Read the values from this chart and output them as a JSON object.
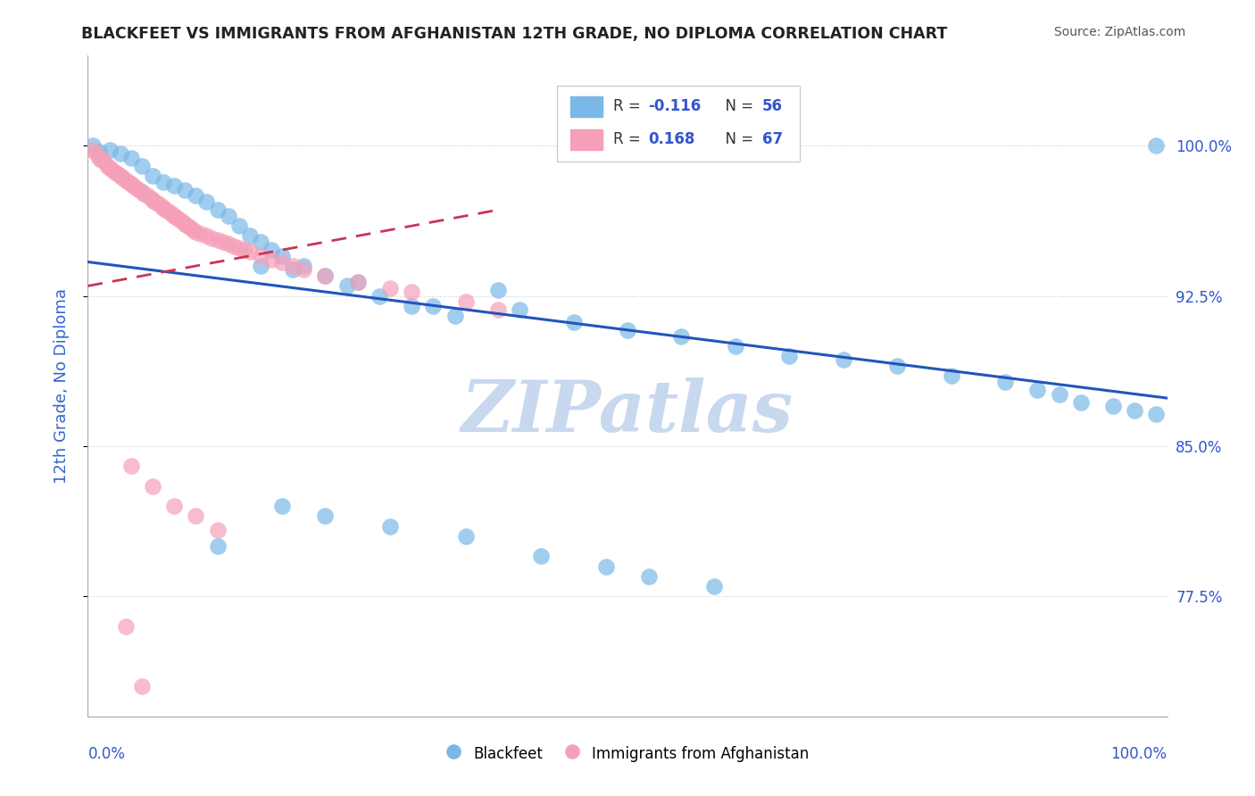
{
  "title": "BLACKFEET VS IMMIGRANTS FROM AFGHANISTAN 12TH GRADE, NO DIPLOMA CORRELATION CHART",
  "source": "Source: ZipAtlas.com",
  "ylabel": "12th Grade, No Diploma",
  "ylabel_color": "#3366cc",
  "ytick_labels": [
    "77.5%",
    "85.0%",
    "92.5%",
    "100.0%"
  ],
  "ytick_values": [
    0.775,
    0.85,
    0.925,
    1.0
  ],
  "xlim": [
    0.0,
    1.0
  ],
  "ylim": [
    0.715,
    1.045
  ],
  "blue_R": "-0.116",
  "blue_N": "56",
  "pink_R": "0.168",
  "pink_N": "67",
  "blue_color": "#7ab8e8",
  "pink_color": "#f4a0b8",
  "trend_blue_color": "#2255bb",
  "trend_pink_color": "#cc3355",
  "stat_color": "#3355cc",
  "watermark_text": "ZIPatlas",
  "watermark_color": "#c8d8ee",
  "legend_blue_label": "Blackfeet",
  "legend_pink_label": "Immigrants from Afghanistan",
  "blue_x": [
    0.005,
    0.01,
    0.02,
    0.03,
    0.04,
    0.05,
    0.06,
    0.07,
    0.08,
    0.09,
    0.1,
    0.11,
    0.12,
    0.13,
    0.14,
    0.15,
    0.16,
    0.17,
    0.18,
    0.2,
    0.22,
    0.24,
    0.27,
    0.3,
    0.34,
    0.38,
    0.16,
    0.19,
    0.25,
    0.32,
    0.4,
    0.45,
    0.5,
    0.55,
    0.6,
    0.65,
    0.7,
    0.75,
    0.8,
    0.85,
    0.88,
    0.9,
    0.92,
    0.95,
    0.97,
    0.99,
    0.18,
    0.22,
    0.12,
    0.28,
    0.35,
    0.42,
    0.48,
    0.52,
    0.58,
    0.99
  ],
  "blue_y": [
    1.0,
    0.997,
    0.998,
    0.996,
    0.994,
    0.99,
    0.985,
    0.982,
    0.98,
    0.978,
    0.975,
    0.972,
    0.968,
    0.965,
    0.96,
    0.955,
    0.952,
    0.948,
    0.945,
    0.94,
    0.935,
    0.93,
    0.925,
    0.92,
    0.915,
    0.928,
    0.94,
    0.938,
    0.932,
    0.92,
    0.918,
    0.912,
    0.908,
    0.905,
    0.9,
    0.895,
    0.893,
    0.89,
    0.885,
    0.882,
    0.878,
    0.876,
    0.872,
    0.87,
    0.868,
    0.866,
    0.82,
    0.815,
    0.8,
    0.81,
    0.805,
    0.795,
    0.79,
    0.785,
    0.78,
    1.0
  ],
  "pink_x": [
    0.005,
    0.008,
    0.01,
    0.012,
    0.015,
    0.018,
    0.02,
    0.022,
    0.025,
    0.028,
    0.03,
    0.032,
    0.035,
    0.038,
    0.04,
    0.042,
    0.045,
    0.048,
    0.05,
    0.052,
    0.055,
    0.058,
    0.06,
    0.062,
    0.065,
    0.068,
    0.07,
    0.072,
    0.075,
    0.078,
    0.08,
    0.082,
    0.085,
    0.088,
    0.09,
    0.092,
    0.095,
    0.098,
    0.1,
    0.105,
    0.11,
    0.115,
    0.12,
    0.125,
    0.13,
    0.135,
    0.14,
    0.145,
    0.15,
    0.16,
    0.17,
    0.18,
    0.19,
    0.2,
    0.22,
    0.25,
    0.28,
    0.3,
    0.35,
    0.38,
    0.04,
    0.06,
    0.08,
    0.1,
    0.12,
    0.035,
    0.05
  ],
  "pink_y": [
    0.998,
    0.996,
    0.994,
    0.993,
    0.992,
    0.99,
    0.989,
    0.988,
    0.987,
    0.986,
    0.985,
    0.984,
    0.983,
    0.982,
    0.981,
    0.98,
    0.979,
    0.978,
    0.977,
    0.976,
    0.975,
    0.974,
    0.973,
    0.972,
    0.971,
    0.97,
    0.969,
    0.968,
    0.967,
    0.966,
    0.965,
    0.964,
    0.963,
    0.962,
    0.961,
    0.96,
    0.959,
    0.958,
    0.957,
    0.956,
    0.955,
    0.954,
    0.953,
    0.952,
    0.951,
    0.95,
    0.949,
    0.948,
    0.947,
    0.945,
    0.943,
    0.942,
    0.94,
    0.938,
    0.935,
    0.932,
    0.929,
    0.927,
    0.922,
    0.918,
    0.84,
    0.83,
    0.82,
    0.815,
    0.808,
    0.76,
    0.73
  ],
  "blue_trend_x": [
    0.0,
    1.0
  ],
  "blue_trend_y": [
    0.942,
    0.874
  ],
  "pink_trend_x": [
    0.0,
    0.38
  ],
  "pink_trend_y": [
    0.93,
    0.968
  ]
}
